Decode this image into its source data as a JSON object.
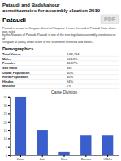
{
  "title": "Pataudi and Badshahpur\nconstituencies for assembly election 2019",
  "section_title": "Pataudi",
  "description": "Pataudi is a town in Gurgaon district of Haryana. It is on the road of Pataudi State which was ruled\nby the Nawabs of Pataudi. Pataudi is one of the nine legislative assembly constituences of\nGurgaon at (talka) and it is one of the seventeen reserved and others...",
  "demographics_label": "Demographics",
  "demographics": [
    {
      "label": "Total Voters",
      "value": "2,82,764"
    },
    {
      "label": "Males",
      "value": "53.13%"
    },
    {
      "label": "Females",
      "value": "46.87%"
    },
    {
      "label": "Sex Ratio",
      "value": "882"
    },
    {
      "label": "Urban Population",
      "value": "60%"
    },
    {
      "label": "Rural Population",
      "value": "40%"
    },
    {
      "label": "Hindus",
      "value": "94%"
    },
    {
      "label": "Muslims",
      "value": "2%"
    }
  ],
  "annotations": [
    "PDF"
  ],
  "chart_data": {
    "type": "bar",
    "title": "Caste Division",
    "categories": [
      "Jatav",
      "Jats",
      "Meo",
      "Banias",
      "OBCs"
    ],
    "values": [
      35,
      15,
      2,
      12,
      12
    ],
    "color": "#3a5fcd",
    "ylim": [
      0,
      35
    ],
    "yticks": [
      0,
      5,
      10,
      15,
      20,
      25,
      30,
      35
    ]
  }
}
